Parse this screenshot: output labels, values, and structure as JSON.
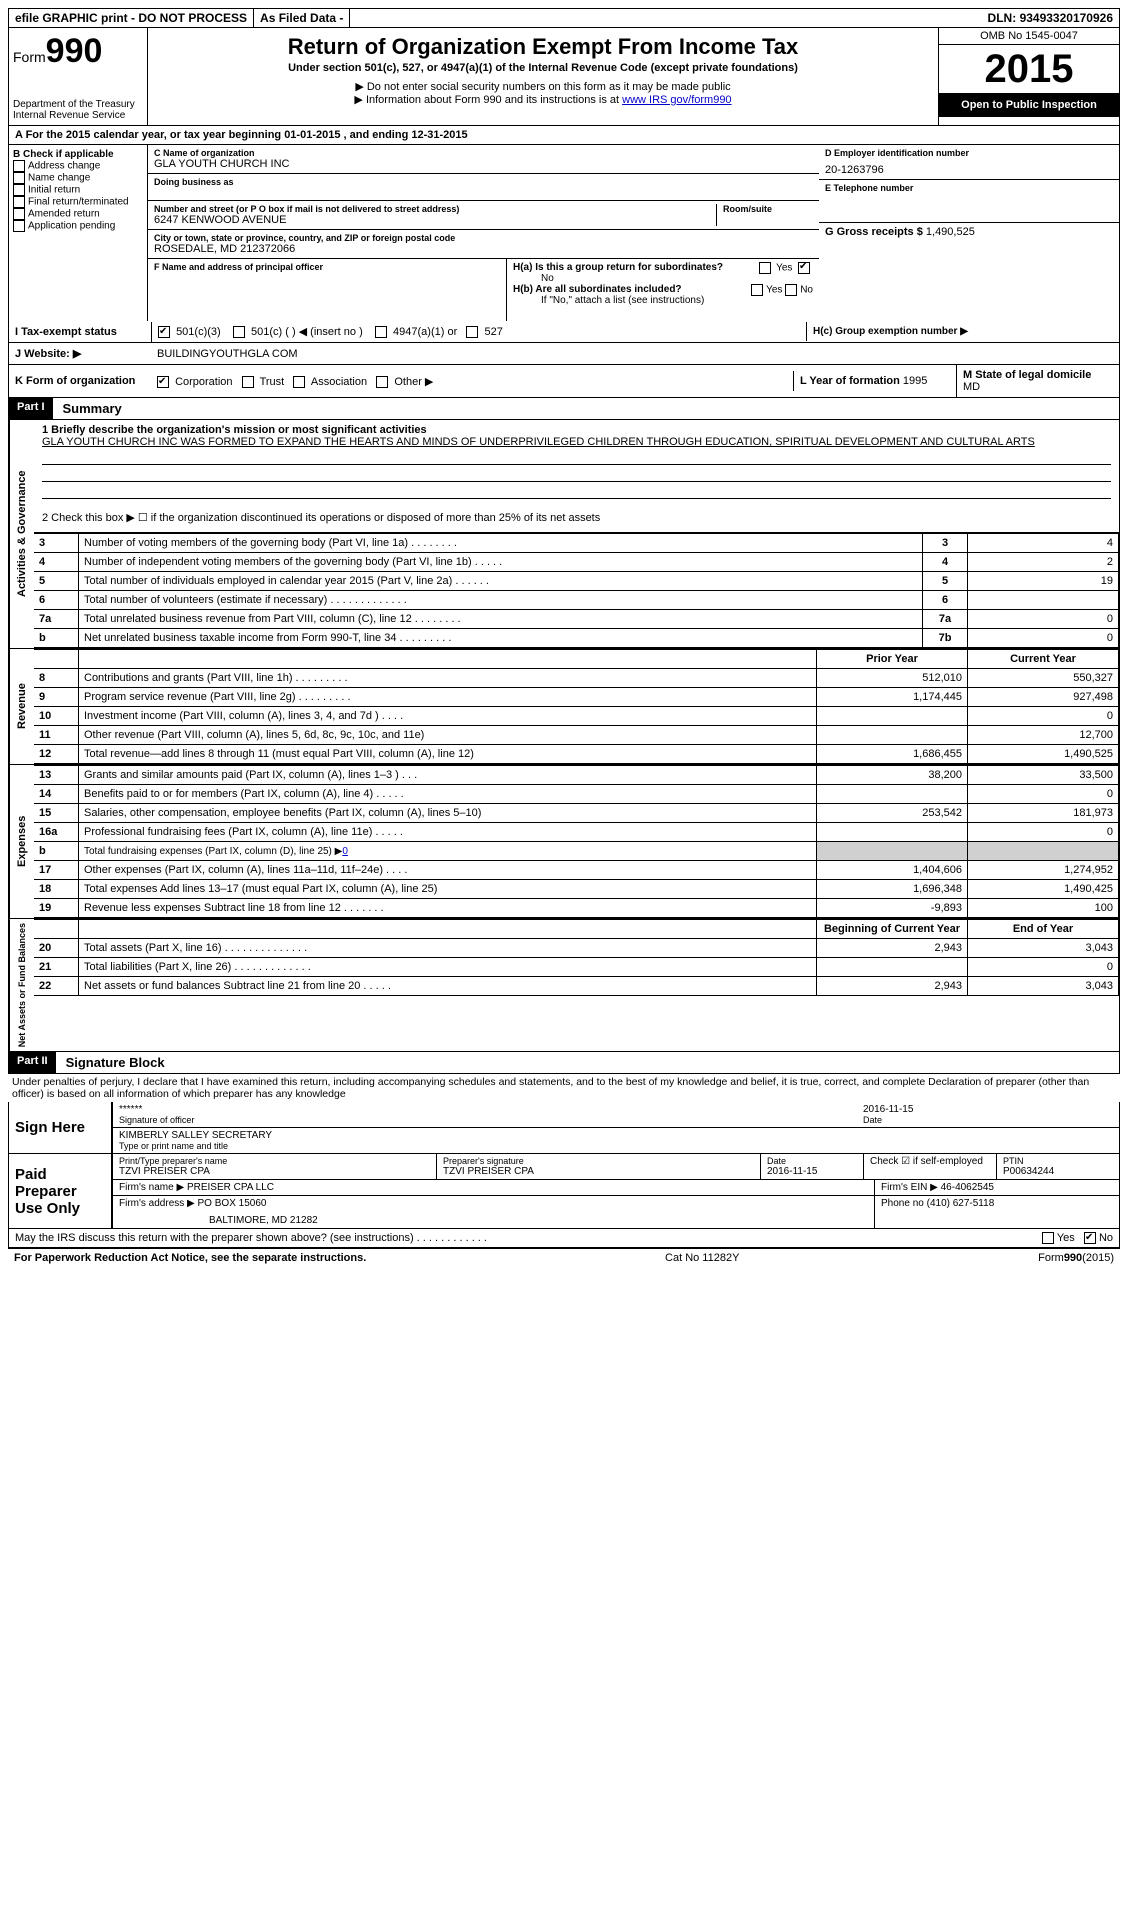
{
  "topbar": {
    "efile": "efile GRAPHIC print - DO NOT PROCESS",
    "asfiled": "As Filed Data -",
    "dln_label": "DLN:",
    "dln": "93493320170926"
  },
  "header": {
    "form_prefix": "Form",
    "form_number": "990",
    "dept1": "Department of the Treasury",
    "dept2": "Internal Revenue Service",
    "title": "Return of Organization Exempt From Income Tax",
    "subtitle": "Under section 501(c), 527, or 4947(a)(1) of the Internal Revenue Code (except private foundations)",
    "note1": "▶ Do not enter social security numbers on this form as it may be made public",
    "note2_pre": "▶ Information about Form 990 and its instructions is at ",
    "note2_link": "www IRS gov/form990",
    "omb": "OMB No 1545-0047",
    "year": "2015",
    "inspect": "Open to Public Inspection"
  },
  "row_a": "A  For the 2015 calendar year, or tax year beginning 01-01-2015    , and ending 12-31-2015",
  "section_b": {
    "title": "B  Check if applicable",
    "items": [
      "Address change",
      "Name change",
      "Initial return",
      "Final return/terminated",
      "Amended return",
      "Application pending"
    ]
  },
  "section_c": {
    "label_name": "C Name of organization",
    "org_name": "GLA YOUTH CHURCH INC",
    "dba_label": "Doing business as",
    "street_label": "Number and street (or P O  box if mail is not delivered to street address)",
    "room_label": "Room/suite",
    "street": "6247 KENWOOD AVENUE",
    "city_label": "City or town, state or province, country, and ZIP or foreign postal code",
    "city": "ROSEDALE, MD  212372066",
    "f_label": "F  Name and address of principal officer"
  },
  "section_right": {
    "d_label": "D Employer identification number",
    "ein": "20-1263796",
    "e_label": "E Telephone number",
    "g_label": "G Gross receipts $",
    "g_val": "1,490,525",
    "ha_label": "H(a)  Is this a group return for subordinates?",
    "ha_no": "No",
    "hb_label": "H(b)  Are all subordinates included?",
    "hb_note": "If \"No,\" attach a list  (see instructions)",
    "hc_label": "H(c)  Group exemption number ▶",
    "yes": "Yes",
    "no": "No"
  },
  "row_i": {
    "lbl": "I   Tax-exempt status",
    "opts": [
      "501(c)(3)",
      "501(c) (  ) ◀ (insert no )",
      "4947(a)(1) or",
      "527"
    ]
  },
  "row_j": {
    "lbl": "J   Website: ▶",
    "val": "BUILDINGYOUTHGLA COM"
  },
  "row_k": {
    "lbl": "K Form of organization",
    "opts": [
      "Corporation",
      "Trust",
      "Association",
      "Other ▶"
    ],
    "l_lbl": "L Year of formation",
    "l_val": "1995",
    "m_lbl": "M State of legal domicile",
    "m_val": "MD"
  },
  "part1": {
    "header": "Part I",
    "title": "Summary",
    "side_gov": "Activities & Governance",
    "side_rev": "Revenue",
    "side_exp": "Expenses",
    "side_net": "Net Assets or Fund Balances",
    "line1_lbl": "1 Briefly describe the organization's mission or most significant activities",
    "mission": "GLA YOUTH CHURCH INC WAS FORMED TO EXPAND THE HEARTS AND MINDS OF UNDERPRIVILEGED CHILDREN THROUGH EDUCATION, SPIRITUAL DEVELOPMENT AND CULTURAL ARTS",
    "line2": "2  Check this box ▶ ☐ if the organization discontinued its operations or disposed of more than 25% of its net assets",
    "gov_rows": [
      {
        "n": "3",
        "d": "Number of voting members of the governing body (Part VI, line 1a)  .   .   .   .   .   .   .   .",
        "m": "3",
        "v": "4"
      },
      {
        "n": "4",
        "d": "Number of independent voting members of the governing body (Part VI, line 1b)   .   .   .   .   .",
        "m": "4",
        "v": "2"
      },
      {
        "n": "5",
        "d": "Total number of individuals employed in calendar year 2015 (Part V, line 2a)    .   .   .   .   .   .",
        "m": "5",
        "v": "19"
      },
      {
        "n": "6",
        "d": "Total number of volunteers (estimate if necessary)   .   .   .   .   .   .   .   .   .   .   .   .   .",
        "m": "6",
        "v": ""
      },
      {
        "n": "7a",
        "d": "Total unrelated business revenue from Part VIII, column (C), line 12   .   .   .   .   .   .   .   .",
        "m": "7a",
        "v": "0"
      },
      {
        "n": "b",
        "d": "Net unrelated business taxable income from Form 990-T, line 34   .   .   .   .   .   .   .   .   .",
        "m": "7b",
        "v": "0"
      }
    ],
    "col_prior": "Prior Year",
    "col_curr": "Current Year",
    "rev_rows": [
      {
        "n": "8",
        "d": "Contributions and grants (Part VIII, line 1h)   .   .   .   .   .   .   .   .   .",
        "p": "512,010",
        "c": "550,327"
      },
      {
        "n": "9",
        "d": "Program service revenue (Part VIII, line 2g)   .   .   .   .   .   .   .   .   .",
        "p": "1,174,445",
        "c": "927,498"
      },
      {
        "n": "10",
        "d": "Investment income (Part VIII, column (A), lines 3, 4, and 7d )   .   .   .   .",
        "p": "",
        "c": "0"
      },
      {
        "n": "11",
        "d": "Other revenue (Part VIII, column (A), lines 5, 6d, 8c, 9c, 10c, and 11e)",
        "p": "",
        "c": "12,700"
      },
      {
        "n": "12",
        "d": "Total revenue—add lines 8 through 11 (must equal Part VIII, column (A), line 12)",
        "p": "1,686,455",
        "c": "1,490,525"
      }
    ],
    "exp_rows": [
      {
        "n": "13",
        "d": "Grants and similar amounts paid (Part IX, column (A), lines 1–3 )   .   .   .",
        "p": "38,200",
        "c": "33,500"
      },
      {
        "n": "14",
        "d": "Benefits paid to or for members (Part IX, column (A), line 4)   .   .   .   .   .",
        "p": "",
        "c": "0"
      },
      {
        "n": "15",
        "d": "Salaries, other compensation, employee benefits (Part IX, column (A), lines 5–10)",
        "p": "253,542",
        "c": "181,973"
      },
      {
        "n": "16a",
        "d": "Professional fundraising fees (Part IX, column (A), line 11e)   .   .   .   .   .",
        "p": "",
        "c": "0"
      },
      {
        "n": "b",
        "d": "Total fundraising expenses (Part IX, column (D), line 25) ▶",
        "p": "grey",
        "c": "grey",
        "extra": "0"
      },
      {
        "n": "17",
        "d": "Other expenses (Part IX, column (A), lines 11a–11d, 11f–24e)   .   .   .   .",
        "p": "1,404,606",
        "c": "1,274,952"
      },
      {
        "n": "18",
        "d": "Total expenses  Add lines 13–17 (must equal Part IX, column (A), line 25)",
        "p": "1,696,348",
        "c": "1,490,425"
      },
      {
        "n": "19",
        "d": "Revenue less expenses  Subtract line 18 from line 12   .   .   .   .   .   .   .",
        "p": "-9,893",
        "c": "100"
      }
    ],
    "col_begin": "Beginning of Current Year",
    "col_end": "End of Year",
    "net_rows": [
      {
        "n": "20",
        "d": "Total assets (Part X, line 16)   .   .   .   .   .   .   .   .   .   .   .   .   .   .",
        "p": "2,943",
        "c": "3,043"
      },
      {
        "n": "21",
        "d": "Total liabilities (Part X, line 26)    .   .   .   .   .   .   .   .   .   .   .   .   .",
        "p": "",
        "c": "0"
      },
      {
        "n": "22",
        "d": "Net assets or fund balances  Subtract line 21 from line 20   .   .   .   .   .",
        "p": "2,943",
        "c": "3,043"
      }
    ]
  },
  "part2": {
    "header": "Part II",
    "title": "Signature Block",
    "perjury": "Under penalties of perjury, I declare that I have examined this return, including accompanying schedules and statements, and to the best of my knowledge and belief, it is true, correct, and complete  Declaration of preparer (other than officer) is based on all information of which preparer has any knowledge",
    "sign_here": "Sign Here",
    "sig_stars": "******",
    "sig_officer_lbl": "Signature of officer",
    "sig_date": "2016-11-15",
    "sig_date_lbl": "Date",
    "officer_name": "KIMBERLY SALLEY SECRETARY",
    "officer_name_lbl": "Type or print name and title",
    "paid": "Paid Preparer Use Only",
    "prep_name_lbl": "Print/Type preparer's name",
    "prep_name": "TZVI PREISER CPA",
    "prep_sig_lbl": "Preparer's signature",
    "prep_sig": "TZVI PREISER CPA",
    "prep_date_lbl": "Date",
    "prep_date": "2016-11-15",
    "prep_check_lbl": "Check ☑ if self-employed",
    "ptin_lbl": "PTIN",
    "ptin": "P00634244",
    "firm_name_lbl": "Firm's name     ▶",
    "firm_name": "PREISER CPA LLC",
    "firm_ein_lbl": "Firm's EIN ▶",
    "firm_ein": "46-4062545",
    "firm_addr_lbl": "Firm's address ▶",
    "firm_addr1": "PO BOX 15060",
    "firm_addr2": "BALTIMORE, MD  21282",
    "firm_phone_lbl": "Phone no",
    "firm_phone": "(410) 627-5118",
    "discuss": "May the IRS discuss this return with the preparer shown above? (see instructions)   .   .   .   .   .   .   .   .   .   .   .   .",
    "discuss_yes": "Yes",
    "discuss_no": "No"
  },
  "footer": {
    "left": "For Paperwork Reduction Act Notice, see the separate instructions.",
    "mid": "Cat No  11282Y",
    "right": "Form 990 (2015)"
  }
}
